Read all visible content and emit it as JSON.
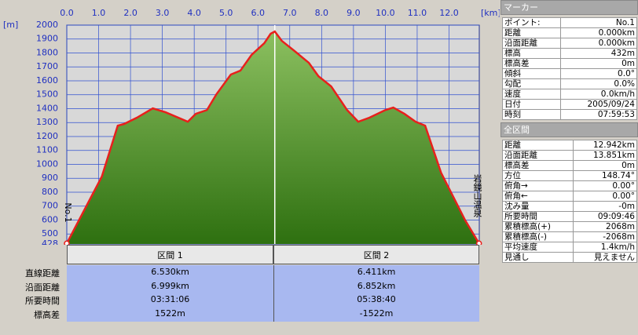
{
  "chart_data": {
    "type": "area",
    "y_unit": "[m]",
    "x_unit": "[km]",
    "start_label": "No.1",
    "end_label": "岩鏡山温泉",
    "x": [
      0,
      1.1,
      1.6,
      1.8,
      2.2,
      2.7,
      3.1,
      3.8,
      4.05,
      4.4,
      4.7,
      5.15,
      5.45,
      5.8,
      6.2,
      6.4,
      6.53,
      6.75,
      7.15,
      7.6,
      7.9,
      8.3,
      8.8,
      9.15,
      9.5,
      10.0,
      10.25,
      10.6,
      10.95,
      11.25,
      11.75,
      12.5,
      12.942
    ],
    "series": [
      {
        "color": "#e8201c",
        "values": [
          432,
          912,
          1278,
          1290,
          1335,
          1402,
          1374,
          1306,
          1363,
          1390,
          1504,
          1645,
          1673,
          1786,
          1870,
          1938,
          1954,
          1887,
          1814,
          1729,
          1633,
          1560,
          1390,
          1306,
          1335,
          1390,
          1408,
          1363,
          1306,
          1278,
          940,
          601,
          432
        ]
      }
    ],
    "xlim": [
      0,
      12.95
    ],
    "ylim": [
      428,
      2000
    ],
    "xticks": [
      {
        "value": 0,
        "label": "0.0"
      },
      {
        "value": 1,
        "label": "1.0"
      },
      {
        "value": 2,
        "label": "2.0"
      },
      {
        "value": 3,
        "label": "3.0"
      },
      {
        "value": 4,
        "label": "4.0"
      },
      {
        "value": 5,
        "label": "5.0"
      },
      {
        "value": 6,
        "label": "6.0"
      },
      {
        "value": 7,
        "label": "7.0"
      },
      {
        "value": 8,
        "label": "8.0"
      },
      {
        "value": 9,
        "label": "9.0"
      },
      {
        "value": 10,
        "label": "10.0"
      },
      {
        "value": 11,
        "label": "11.0"
      },
      {
        "value": 12,
        "label": "12.0"
      }
    ],
    "yticks": [
      428,
      500,
      600,
      700,
      800,
      900,
      1000,
      1100,
      1200,
      1300,
      1400,
      1500,
      1600,
      1700,
      1800,
      1900,
      2000
    ],
    "grid": true
  },
  "section_table": {
    "headers": [
      "区間 1",
      "区間 2"
    ],
    "rows": [
      [
        "直線距離",
        "6.530km",
        "6.411km"
      ],
      [
        "沿面距離",
        "6.999km",
        "6.852km"
      ],
      [
        "所要時間",
        "03:31:06",
        "05:38:40"
      ],
      [
        "標高差",
        "1522m",
        "-1522m"
      ]
    ]
  },
  "marker_panel": {
    "title": "マーカー",
    "rows": [
      [
        "ポイント:",
        "No.1"
      ],
      [
        "距離",
        "0.000km"
      ],
      [
        "沿面距離",
        "0.000km"
      ],
      [
        "標高",
        "432m"
      ],
      [
        "標高差",
        "0m"
      ],
      [
        "傾斜",
        "0.0°"
      ],
      [
        "勾配",
        "0.0%"
      ],
      [
        "速度",
        "0.0km/h"
      ],
      [
        "日付",
        "2005/09/24"
      ],
      [
        "時刻",
        "07:59:53"
      ]
    ]
  },
  "total_panel": {
    "title": "全区間",
    "rows": [
      [
        "距離",
        "12.942km"
      ],
      [
        "沿面距離",
        "13.851km"
      ],
      [
        "標高差",
        "0m"
      ],
      [
        "方位",
        "148.74°"
      ],
      [
        "俯角→",
        "0.00°"
      ],
      [
        "俯角←",
        "0.00°"
      ],
      [
        "沈み量",
        "-0m"
      ],
      [
        "所要時間",
        "09:09:46"
      ],
      [
        "累積標高(+)",
        "2068m"
      ],
      [
        "累積標高(-)",
        "-2068m"
      ],
      [
        "平均速度",
        "1.4km/h"
      ],
      [
        "見通し",
        "見えません"
      ]
    ]
  }
}
